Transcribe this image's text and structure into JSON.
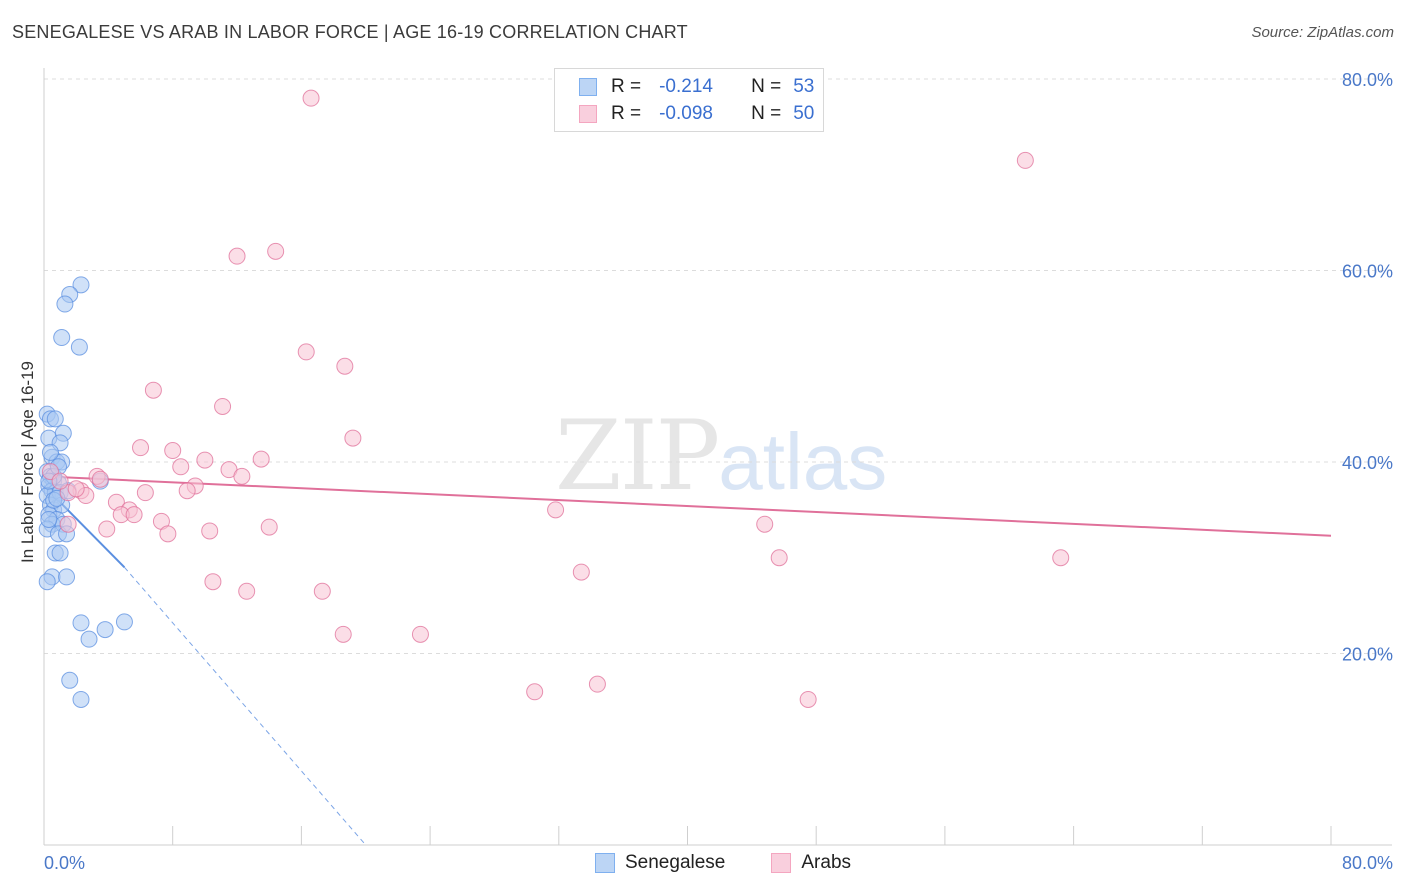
{
  "header": {
    "title": "SENEGALESE VS ARAB IN LABOR FORCE | AGE 16-19 CORRELATION CHART",
    "source": "Source: ZipAtlas.com"
  },
  "watermark": {
    "zip": "ZIP",
    "atlas": "atlas"
  },
  "legend": {
    "rows": [
      {
        "r_label": "R =",
        "r_value": "-0.214",
        "n_label": "N =",
        "n_value": "53",
        "color": "#7fb0ef"
      },
      {
        "r_label": "R =",
        "r_value": "-0.098",
        "n_label": "N =",
        "n_value": "50",
        "color": "#f4a6c0"
      }
    ]
  },
  "bottom_legend": {
    "items": [
      {
        "label": "Senegalese",
        "color": "#7fb0ef"
      },
      {
        "label": "Arabs",
        "color": "#f4a6c0"
      }
    ]
  },
  "chart_data": {
    "type": "scatter",
    "title": "SENEGALESE VS ARAB IN LABOR FORCE | AGE 16-19 CORRELATION CHART",
    "ylabel": "In Labor Force | Age 16-19",
    "xlabel": "",
    "xlim": [
      0,
      80
    ],
    "ylim": [
      0,
      80
    ],
    "x_tick_labels": [
      "0.0%",
      "80.0%"
    ],
    "y_ticks": [
      20,
      40,
      60,
      80
    ],
    "y_tick_labels": [
      "20.0%",
      "40.0%",
      "60.0%",
      "80.0%"
    ],
    "grid": true,
    "series": [
      {
        "name": "Senegalese",
        "color": "#5b8fe0",
        "fill": "#a9c8f2",
        "trend_line": {
          "x": [
            0,
            5
          ],
          "y": [
            37.5,
            29.0
          ],
          "dashed_extension": {
            "x": [
              5,
              20
            ],
            "y": [
              29.0,
              0
            ]
          }
        },
        "points": [
          [
            0.2,
            45
          ],
          [
            0.4,
            44.5
          ],
          [
            0.7,
            44.5
          ],
          [
            0.3,
            42.5
          ],
          [
            1.2,
            43
          ],
          [
            1.0,
            42
          ],
          [
            0.5,
            40.5
          ],
          [
            0.8,
            40
          ],
          [
            1.1,
            40
          ],
          [
            0.2,
            39
          ],
          [
            0.4,
            38.5
          ],
          [
            0.6,
            38
          ],
          [
            0.9,
            37.8
          ],
          [
            0.3,
            37.5
          ],
          [
            0.5,
            37
          ],
          [
            0.7,
            36.8
          ],
          [
            0.2,
            36.5
          ],
          [
            1.0,
            36.8
          ],
          [
            0.4,
            35.5
          ],
          [
            0.6,
            35
          ],
          [
            1.1,
            35.5
          ],
          [
            0.3,
            34.5
          ],
          [
            0.8,
            34
          ],
          [
            0.5,
            33.5
          ],
          [
            1.2,
            33.5
          ],
          [
            0.2,
            33
          ],
          [
            0.9,
            32.5
          ],
          [
            1.4,
            32.5
          ],
          [
            0.7,
            30.5
          ],
          [
            1.0,
            30.5
          ],
          [
            0.5,
            28
          ],
          [
            1.4,
            28
          ],
          [
            0.2,
            27.5
          ],
          [
            3.5,
            38
          ],
          [
            0.6,
            38.5
          ],
          [
            0.3,
            38
          ],
          [
            1.5,
            37
          ],
          [
            2.3,
            58.5
          ],
          [
            1.6,
            57.5
          ],
          [
            1.3,
            56.5
          ],
          [
            1.1,
            53
          ],
          [
            2.2,
            52
          ],
          [
            2.3,
            23.2
          ],
          [
            2.8,
            21.5
          ],
          [
            3.8,
            22.5
          ],
          [
            5.0,
            23.3
          ],
          [
            1.6,
            17.2
          ],
          [
            2.3,
            15.2
          ],
          [
            0.4,
            41
          ],
          [
            0.9,
            39.5
          ],
          [
            0.6,
            36
          ],
          [
            0.3,
            34
          ],
          [
            0.8,
            36.2
          ]
        ]
      },
      {
        "name": "Arabs",
        "color": "#e0709a",
        "fill": "#f7c2d4",
        "trend_line": {
          "x": [
            0,
            80
          ],
          "y": [
            38.5,
            32.3
          ]
        },
        "points": [
          [
            16.6,
            78
          ],
          [
            61.0,
            71.5
          ],
          [
            12.0,
            61.5
          ],
          [
            14.4,
            62
          ],
          [
            16.3,
            51.5
          ],
          [
            18.7,
            50
          ],
          [
            6.8,
            47.5
          ],
          [
            11.1,
            45.8
          ],
          [
            19.2,
            42.5
          ],
          [
            6.0,
            41.5
          ],
          [
            8.0,
            41.2
          ],
          [
            13.5,
            40.3
          ],
          [
            10.0,
            40.2
          ],
          [
            8.5,
            39.5
          ],
          [
            11.5,
            39.2
          ],
          [
            12.3,
            38.5
          ],
          [
            3.3,
            38.5
          ],
          [
            3.5,
            38.2
          ],
          [
            9.4,
            37.5
          ],
          [
            2.3,
            37
          ],
          [
            8.9,
            37
          ],
          [
            1.5,
            36.8
          ],
          [
            2.6,
            36.5
          ],
          [
            6.3,
            36.8
          ],
          [
            4.5,
            35.8
          ],
          [
            5.3,
            35
          ],
          [
            4.8,
            34.5
          ],
          [
            5.6,
            34.5
          ],
          [
            7.3,
            33.8
          ],
          [
            14.0,
            33.2
          ],
          [
            10.3,
            32.8
          ],
          [
            7.7,
            32.5
          ],
          [
            3.9,
            33
          ],
          [
            31.8,
            35
          ],
          [
            44.8,
            33.5
          ],
          [
            1.5,
            33.5
          ],
          [
            45.7,
            30
          ],
          [
            63.2,
            30
          ],
          [
            33.4,
            28.5
          ],
          [
            10.5,
            27.5
          ],
          [
            12.6,
            26.5
          ],
          [
            17.3,
            26.5
          ],
          [
            18.6,
            22
          ],
          [
            23.4,
            22
          ],
          [
            30.5,
            16
          ],
          [
            34.4,
            16.8
          ],
          [
            47.5,
            15.2
          ],
          [
            0.4,
            39
          ],
          [
            1.0,
            38
          ],
          [
            2.0,
            37.2
          ]
        ]
      }
    ]
  }
}
